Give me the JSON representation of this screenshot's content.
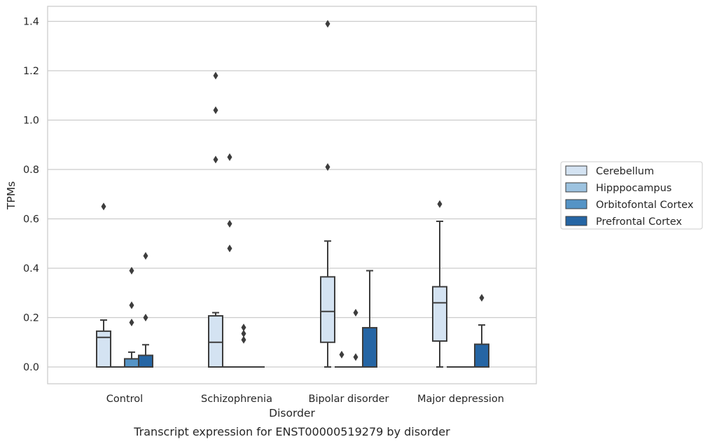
{
  "caption": "Transcript expression for ENST00000519279 by disorder",
  "chart_data": {
    "type": "box",
    "xlabel": "Disorder",
    "ylabel": "TPMs",
    "ylim": [
      -0.065,
      1.46
    ],
    "yticks": [
      0.0,
      0.2,
      0.4,
      0.6,
      0.8,
      1.0,
      1.2,
      1.4
    ],
    "ytick_labels": [
      "0.0",
      "0.2",
      "0.4",
      "0.6",
      "0.8",
      "1.0",
      "1.2",
      "1.4"
    ],
    "grid": "horizontal",
    "legend_position": "right",
    "categories": [
      "Control",
      "Schizophrenia",
      "Bipolar disorder",
      "Major depression"
    ],
    "series": [
      {
        "name": "Cerebellum",
        "color": "#d4e3f2",
        "boxes": [
          {
            "q1": 0.0,
            "median": 0.12,
            "q3": 0.145,
            "whisker_low": 0.0,
            "whisker_high": 0.19,
            "outliers": [
              0.65
            ]
          },
          {
            "q1": 0.0,
            "median": 0.1,
            "q3": 0.207,
            "whisker_low": 0.0,
            "whisker_high": 0.22,
            "outliers": [
              0.84,
              1.04,
              1.18
            ]
          },
          {
            "q1": 0.1,
            "median": 0.225,
            "q3": 0.365,
            "whisker_low": 0.0,
            "whisker_high": 0.51,
            "outliers": [
              0.81,
              1.39
            ]
          },
          {
            "q1": 0.105,
            "median": 0.26,
            "q3": 0.325,
            "whisker_low": 0.0,
            "whisker_high": 0.59,
            "outliers": [
              0.66
            ]
          }
        ]
      },
      {
        "name": "Hipppocampus",
        "color": "#9dc3e0",
        "boxes": [
          {
            "q1": 0.0,
            "median": 0.0,
            "q3": 0.0,
            "whisker_low": 0.0,
            "whisker_high": 0.0,
            "outliers": []
          },
          {
            "q1": 0.0,
            "median": 0.0,
            "q3": 0.0,
            "whisker_low": 0.0,
            "whisker_high": 0.0,
            "outliers": [
              0.48,
              0.58,
              0.85
            ]
          },
          {
            "q1": 0.0,
            "median": 0.0,
            "q3": 0.0,
            "whisker_low": 0.0,
            "whisker_high": 0.0,
            "outliers": [
              0.05
            ]
          },
          {
            "q1": 0.0,
            "median": 0.0,
            "q3": 0.0,
            "whisker_low": 0.0,
            "whisker_high": 0.0,
            "outliers": []
          }
        ]
      },
      {
        "name": "Orbitofontal Cortex",
        "color": "#5594c6",
        "boxes": [
          {
            "q1": 0.0,
            "median": 0.0,
            "q3": 0.033,
            "whisker_low": 0.0,
            "whisker_high": 0.06,
            "outliers": [
              0.18,
              0.25,
              0.39
            ]
          },
          {
            "q1": 0.0,
            "median": 0.0,
            "q3": 0.0,
            "whisker_low": 0.0,
            "whisker_high": 0.0,
            "outliers": [
              0.11,
              0.135,
              0.16
            ]
          },
          {
            "q1": 0.0,
            "median": 0.0,
            "q3": 0.0,
            "whisker_low": 0.0,
            "whisker_high": 0.0,
            "outliers": [
              0.04,
              0.22
            ]
          },
          {
            "q1": 0.0,
            "median": 0.0,
            "q3": 0.0,
            "whisker_low": 0.0,
            "whisker_high": 0.0,
            "outliers": []
          }
        ]
      },
      {
        "name": "Prefrontal Cortex",
        "color": "#2565a4",
        "boxes": [
          {
            "q1": 0.0,
            "median": 0.0,
            "q3": 0.047,
            "whisker_low": 0.0,
            "whisker_high": 0.09,
            "outliers": [
              0.2,
              0.45
            ]
          },
          {
            "q1": 0.0,
            "median": 0.0,
            "q3": 0.0,
            "whisker_low": 0.0,
            "whisker_high": 0.0,
            "outliers": []
          },
          {
            "q1": 0.0,
            "median": 0.0,
            "q3": 0.159,
            "whisker_low": 0.0,
            "whisker_high": 0.39,
            "outliers": []
          },
          {
            "q1": 0.0,
            "median": 0.0,
            "q3": 0.092,
            "whisker_low": 0.0,
            "whisker_high": 0.17,
            "outliers": [
              0.28
            ]
          }
        ]
      }
    ]
  }
}
